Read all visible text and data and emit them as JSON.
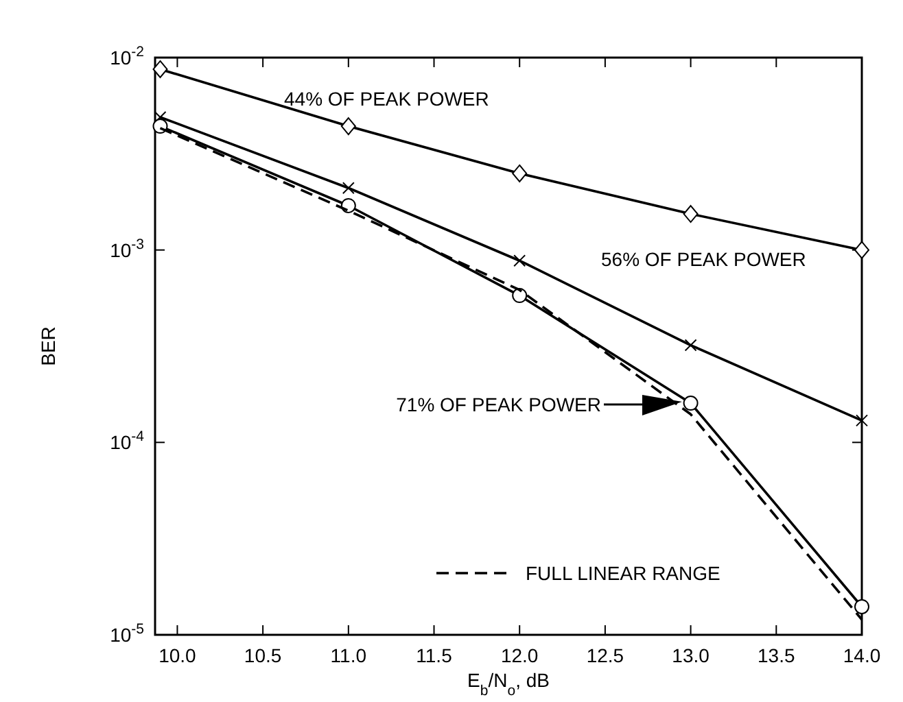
{
  "chart_data": {
    "type": "line",
    "xlabel": "E$_{b}$/N$_{o}$, dB",
    "ylabel": "BER",
    "log": "y",
    "xlim": [
      9.87,
      14.0
    ],
    "ylim": [
      1e-05,
      0.01
    ],
    "xticks": [
      {
        "value": 10,
        "label": "10.0"
      },
      {
        "value": 10.5,
        "label": "10.5"
      },
      {
        "value": 11,
        "label": "11.0"
      },
      {
        "value": 11.5,
        "label": "11.5"
      },
      {
        "value": 12,
        "label": "12.0"
      },
      {
        "value": 12.5,
        "label": "12.5"
      },
      {
        "value": 13,
        "label": "13.0"
      },
      {
        "value": 13.5,
        "label": "13.5"
      },
      {
        "value": 14,
        "label": "14.0"
      }
    ],
    "yticks": [
      {
        "value": 0.01,
        "label": "10$^{-2}$"
      },
      {
        "value": 0.001,
        "label": "10$^{-3}$"
      },
      {
        "value": 0.0001,
        "label": "10$^{-4}$"
      },
      {
        "value": 1e-05,
        "label": "10$^{-5}$"
      }
    ],
    "x": [
      9.9,
      11,
      12,
      13,
      14
    ],
    "series": [
      {
        "color": "#000000",
        "marker": "diamond",
        "line_style": "solid",
        "values": [
          0.0087,
          0.0044,
          0.0025,
          0.00154,
          0.001
        ]
      },
      {
        "color": "#000000",
        "marker": "cross",
        "line_style": "solid",
        "values": [
          0.0049,
          0.0021,
          0.00088,
          0.00032,
          0.00013
        ]
      },
      {
        "color": "#000000",
        "marker": "circle",
        "line_style": "solid",
        "values": [
          0.0044,
          0.0017,
          0.00058,
          0.00016,
          1.4e-05
        ]
      },
      {
        "name": "FULL LINEAR RANGE",
        "color": "#000000",
        "marker": "none",
        "line_style": "dashed",
        "values": [
          0.0043,
          0.0016,
          0.00062,
          0.00014,
          1.2e-05
        ]
      }
    ],
    "annotations": [
      "44% OF PEAK POWER",
      "56% OF PEAK POWER",
      "71% OF PEAK POWER"
    ],
    "legend": "bottom right",
    "grid": false
  }
}
